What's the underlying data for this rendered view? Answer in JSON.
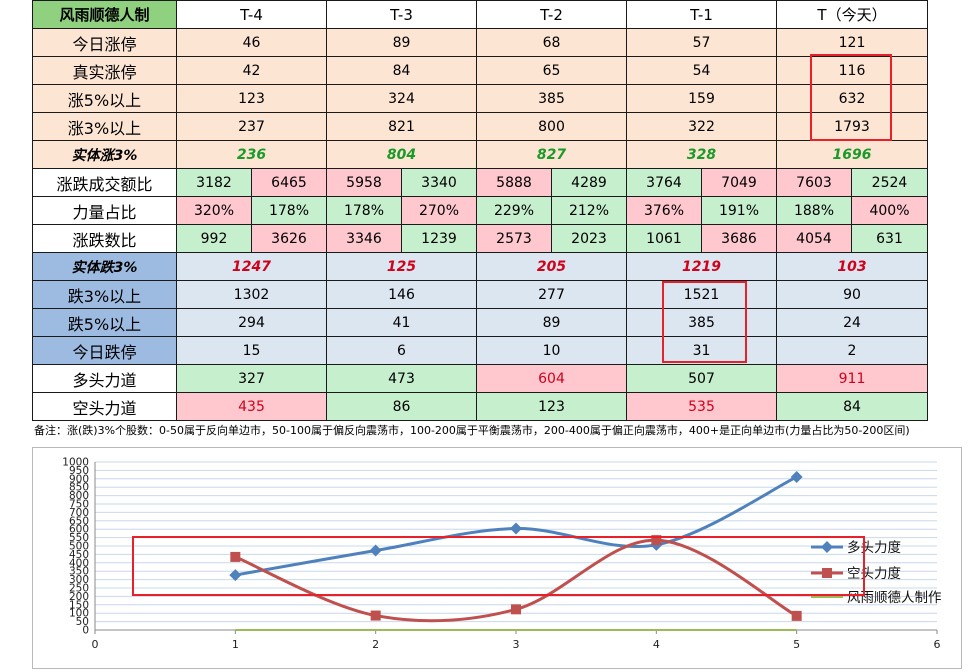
{
  "table": {
    "corner": "风雨顺德人制",
    "headers": [
      "T-4",
      "T-3",
      "T-2",
      "T-1",
      "T（今天）"
    ],
    "rows_up": [
      {
        "label": "今日涨停",
        "values": [
          "46",
          "89",
          "68",
          "57",
          "121"
        ]
      },
      {
        "label": "真实涨停",
        "values": [
          "42",
          "84",
          "65",
          "54",
          "116"
        ]
      },
      {
        "label": "涨5%以上",
        "values": [
          "123",
          "324",
          "385",
          "159",
          "632"
        ]
      },
      {
        "label": "涨3%以上",
        "values": [
          "237",
          "821",
          "800",
          "322",
          "1793"
        ]
      }
    ],
    "solid_up": {
      "label": "实体涨3%",
      "values": [
        "236",
        "804",
        "827",
        "328",
        "1696"
      ]
    },
    "ratio_rows": [
      {
        "label": "涨跌成交额比",
        "pairs": [
          [
            "3182",
            "6465"
          ],
          [
            "5958",
            "3340"
          ],
          [
            "5888",
            "4289"
          ],
          [
            "3764",
            "7049"
          ],
          [
            "7603",
            "2524"
          ]
        ],
        "colors": [
          [
            "g",
            "r"
          ],
          [
            "r",
            "g"
          ],
          [
            "r",
            "g"
          ],
          [
            "g",
            "r"
          ],
          [
            "r",
            "g"
          ]
        ],
        "pink_text": [
          [
            false,
            false
          ],
          [
            false,
            false
          ],
          [
            false,
            false
          ],
          [
            false,
            false
          ],
          [
            false,
            false
          ]
        ]
      },
      {
        "label": "力量占比",
        "pairs": [
          [
            "320%",
            "178%"
          ],
          [
            "178%",
            "270%"
          ],
          [
            "229%",
            "212%"
          ],
          [
            "376%",
            "191%"
          ],
          [
            "188%",
            "400%"
          ]
        ],
        "colors": [
          [
            "r",
            "g"
          ],
          [
            "g",
            "r"
          ],
          [
            "g",
            "g"
          ],
          [
            "r",
            "g"
          ],
          [
            "g",
            "r"
          ]
        ],
        "pink_text": [
          [
            false,
            false
          ],
          [
            false,
            false
          ],
          [
            false,
            false
          ],
          [
            false,
            false
          ],
          [
            false,
            false
          ]
        ]
      },
      {
        "label": "涨跌数比",
        "pairs": [
          [
            "992",
            "3626"
          ],
          [
            "3346",
            "1239"
          ],
          [
            "2573",
            "2023"
          ],
          [
            "1061",
            "3686"
          ],
          [
            "4054",
            "631"
          ]
        ],
        "colors": [
          [
            "g",
            "r"
          ],
          [
            "r",
            "g"
          ],
          [
            "r",
            "g"
          ],
          [
            "g",
            "r"
          ],
          [
            "r",
            "g"
          ]
        ],
        "pink_text": [
          [
            false,
            false
          ],
          [
            false,
            false
          ],
          [
            false,
            false
          ],
          [
            false,
            false
          ],
          [
            false,
            false
          ]
        ]
      }
    ],
    "solid_down": {
      "label": "实体跌3%",
      "values": [
        "1247",
        "125",
        "205",
        "1219",
        "103"
      ]
    },
    "rows_down": [
      {
        "label": "跌3%以上",
        "values": [
          "1302",
          "146",
          "277",
          "1521",
          "90"
        ]
      },
      {
        "label": "跌5%以上",
        "values": [
          "294",
          "41",
          "89",
          "385",
          "24"
        ]
      },
      {
        "label": "今日跌停",
        "values": [
          "15",
          "6",
          "10",
          "31",
          "2"
        ]
      }
    ],
    "force_rows": [
      {
        "label": "多头力道",
        "values": [
          "327",
          "473",
          "604",
          "507",
          "911"
        ],
        "colors": [
          "g",
          "g",
          "r",
          "g",
          "r"
        ]
      },
      {
        "label": "空头力道",
        "values": [
          "435",
          "86",
          "123",
          "535",
          "84"
        ],
        "colors": [
          "r",
          "g",
          "g",
          "r",
          "g"
        ]
      }
    ]
  },
  "note": "备注：涨(跌)3%个股数：0-50属于反向单边市，50-100属于偏反向震荡市，100-200属于平衡震荡市，200-400属于偏正向震荡市，400+是正向单边市(力量占比为50-200区间)",
  "colors": {
    "bull": "#4f81bd",
    "bear": "#c0504d",
    "maker": "#9bbb59",
    "highlight": "#e8202a"
  },
  "chart_data": {
    "type": "line",
    "x": [
      1,
      2,
      3,
      4,
      5
    ],
    "xlim": [
      0,
      6
    ],
    "ylim": [
      0,
      1000
    ],
    "xticks": [
      0,
      1,
      2,
      3,
      4,
      5,
      6
    ],
    "ytick_step": 50,
    "grid": true,
    "legend_position": "right",
    "series": [
      {
        "name": "多头力度",
        "values": [
          327,
          473,
          604,
          507,
          911
        ],
        "color": "#4f81bd",
        "marker": "diamond"
      },
      {
        "name": "空头力度",
        "values": [
          435,
          86,
          123,
          535,
          84
        ],
        "color": "#c0504d",
        "marker": "square"
      },
      {
        "name": "风雨顺德人制作",
        "values": [
          0,
          0,
          0,
          0,
          0
        ],
        "color": "#9bbb59",
        "marker": "none"
      }
    ]
  }
}
